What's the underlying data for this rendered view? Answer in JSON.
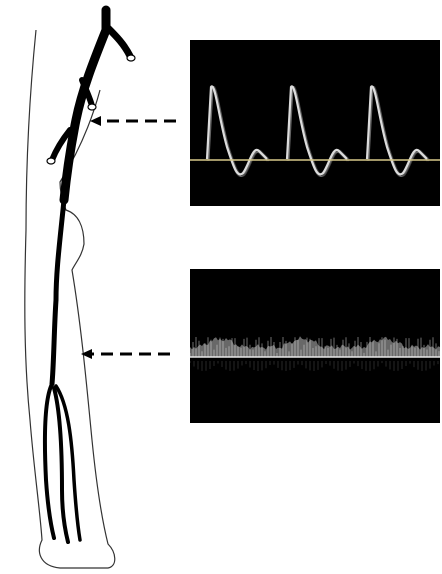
{
  "figure": {
    "colors": {
      "background": "#ffffff",
      "outline": "#333333",
      "artery": "#000000",
      "spectral_background": "#000000",
      "baseline_top": "#d8c98a",
      "baseline_bottom": "#e8e8e8",
      "waveform": "#e6e6e6"
    },
    "arrows": [
      {
        "name": "upper-arrow",
        "style": "dashed",
        "points_to": "proximal-artery"
      },
      {
        "name": "lower-arrow",
        "style": "dashed",
        "points_to": "distal-artery"
      }
    ],
    "doppler_panels": [
      {
        "name": "upper-doppler",
        "waveform": "triphasic",
        "beats": 3
      },
      {
        "name": "lower-doppler",
        "waveform": "monophasic",
        "beats": 3
      }
    ]
  }
}
